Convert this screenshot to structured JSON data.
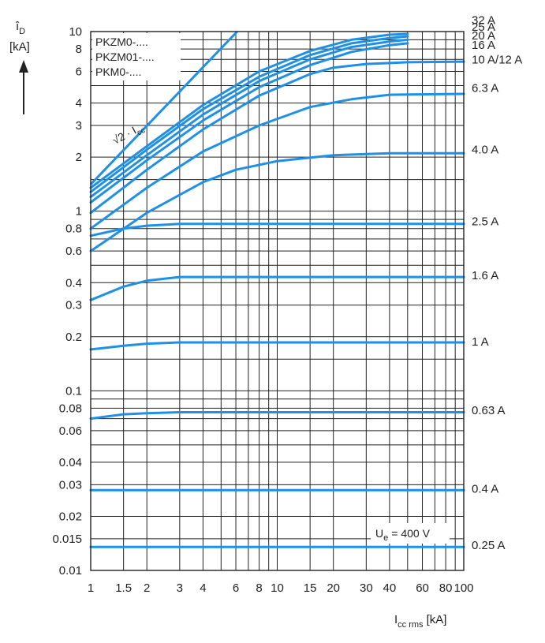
{
  "chart_data": {
    "type": "line",
    "xscale": "log",
    "yscale": "log",
    "xlim": [
      1,
      100
    ],
    "ylim": [
      0.01,
      10
    ],
    "grid": true,
    "series_color": "#1e90e8",
    "ylabel_main": "î",
    "ylabel_sub": "D",
    "yunit": "[kA]",
    "xlabel_main": "I",
    "xlabel_sub": "cc rms",
    "xunit": "[kA]",
    "legend_lines": [
      "PKZM0-....",
      "PKZM01-....",
      "PKM0-...."
    ],
    "ue_main": "U",
    "ue_sub": "e",
    "ue_value": "= 400 V",
    "sqrt_label": "√2 · I",
    "sqrt_sub": "cc",
    "x_ticks": [
      {
        "v": 1,
        "label": "1"
      },
      {
        "v": 1.5,
        "label": "1.5"
      },
      {
        "v": 2,
        "label": "2"
      },
      {
        "v": 3,
        "label": "3"
      },
      {
        "v": 4,
        "label": "4"
      },
      {
        "v": 6,
        "label": "6"
      },
      {
        "v": 8,
        "label": "8"
      },
      {
        "v": 10,
        "label": "10"
      },
      {
        "v": 15,
        "label": "15"
      },
      {
        "v": 20,
        "label": "20"
      },
      {
        "v": 30,
        "label": "30"
      },
      {
        "v": 40,
        "label": "40"
      },
      {
        "v": 60,
        "label": "60"
      },
      {
        "v": 80,
        "label": "80"
      },
      {
        "v": 100,
        "label": "100"
      }
    ],
    "y_ticks": [
      {
        "v": 10,
        "label": "10"
      },
      {
        "v": 8,
        "label": "8"
      },
      {
        "v": 6,
        "label": "6"
      },
      {
        "v": 4,
        "label": "4"
      },
      {
        "v": 3,
        "label": "3"
      },
      {
        "v": 2,
        "label": "2"
      },
      {
        "v": 1,
        "label": "1"
      },
      {
        "v": 0.8,
        "label": "0.8"
      },
      {
        "v": 0.6,
        "label": "0.6"
      },
      {
        "v": 0.4,
        "label": "0.4"
      },
      {
        "v": 0.3,
        "label": "0.3"
      },
      {
        "v": 0.2,
        "label": "0.2"
      },
      {
        "v": 0.1,
        "label": "0.1"
      },
      {
        "v": 0.08,
        "label": "0.08"
      },
      {
        "v": 0.06,
        "label": "0.06"
      },
      {
        "v": 0.04,
        "label": "0.04"
      },
      {
        "v": 0.03,
        "label": "0.03"
      },
      {
        "v": 0.02,
        "label": "0.02"
      },
      {
        "v": 0.015,
        "label": "0.015"
      },
      {
        "v": 0.01,
        "label": "0.01"
      }
    ],
    "x_grid": [
      1,
      1.5,
      2,
      3,
      4,
      5,
      6,
      7,
      8,
      9,
      10,
      15,
      20,
      30,
      40,
      50,
      60,
      70,
      80,
      90,
      100
    ],
    "y_grid": [
      0.01,
      0.015,
      0.02,
      0.03,
      0.04,
      0.05,
      0.06,
      0.07,
      0.08,
      0.09,
      0.1,
      0.15,
      0.2,
      0.3,
      0.4,
      0.5,
      0.6,
      0.7,
      0.8,
      0.9,
      1,
      1.5,
      2,
      3,
      4,
      5,
      6,
      7,
      8,
      9,
      10
    ],
    "reference_line": {
      "name": "√2 · Icc",
      "points": [
        [
          1,
          1.41
        ],
        [
          6.1,
          10
        ]
      ]
    },
    "series": [
      {
        "name": "32 A",
        "end_label": "32 A",
        "points": [
          [
            1,
            1.35
          ],
          [
            2,
            2.3
          ],
          [
            4,
            3.9
          ],
          [
            8,
            6.0
          ],
          [
            15,
            7.8
          ],
          [
            25,
            9.0
          ],
          [
            40,
            9.6
          ],
          [
            50,
            9.7
          ]
        ]
      },
      {
        "name": "25 A",
        "end_label": "25 A",
        "points": [
          [
            1,
            1.28
          ],
          [
            2,
            2.2
          ],
          [
            4,
            3.7
          ],
          [
            8,
            5.6
          ],
          [
            15,
            7.4
          ],
          [
            25,
            8.6
          ],
          [
            40,
            9.2
          ],
          [
            50,
            9.4
          ]
        ]
      },
      {
        "name": "20 A",
        "end_label": "20 A",
        "points": [
          [
            1,
            1.2
          ],
          [
            2,
            2.05
          ],
          [
            4,
            3.45
          ],
          [
            8,
            5.3
          ],
          [
            15,
            7.0
          ],
          [
            25,
            8.2
          ],
          [
            40,
            8.8
          ],
          [
            50,
            9.0
          ]
        ]
      },
      {
        "name": "16 A",
        "end_label": "16 A",
        "points": [
          [
            1,
            1.12
          ],
          [
            2,
            1.92
          ],
          [
            4,
            3.2
          ],
          [
            8,
            4.9
          ],
          [
            15,
            6.5
          ],
          [
            25,
            7.7
          ],
          [
            40,
            8.4
          ],
          [
            50,
            8.6
          ]
        ]
      },
      {
        "name": "10 A/12 A",
        "end_label": "10 A/12 A",
        "points": [
          [
            1,
            0.98
          ],
          [
            2,
            1.7
          ],
          [
            4,
            2.85
          ],
          [
            8,
            4.4
          ],
          [
            15,
            5.8
          ],
          [
            20,
            6.3
          ],
          [
            30,
            6.6
          ],
          [
            50,
            6.75
          ],
          [
            100,
            6.8
          ]
        ]
      },
      {
        "name": "6.3 A",
        "end_label": "6.3 A",
        "points": [
          [
            1,
            0.8
          ],
          [
            2,
            1.35
          ],
          [
            4,
            2.15
          ],
          [
            8,
            3.0
          ],
          [
            15,
            3.8
          ],
          [
            25,
            4.2
          ],
          [
            40,
            4.45
          ],
          [
            100,
            4.5
          ]
        ]
      },
      {
        "name": "4.0 A",
        "end_label": "4.0 A",
        "points": [
          [
            1,
            0.6
          ],
          [
            2,
            0.98
          ],
          [
            4,
            1.45
          ],
          [
            6,
            1.7
          ],
          [
            10,
            1.9
          ],
          [
            20,
            2.05
          ],
          [
            40,
            2.1
          ],
          [
            100,
            2.1
          ]
        ]
      },
      {
        "name": "2.5 A",
        "end_label": "2.5 A",
        "points": [
          [
            1,
            0.73
          ],
          [
            1.5,
            0.8
          ],
          [
            2,
            0.83
          ],
          [
            3,
            0.85
          ],
          [
            100,
            0.85
          ]
        ]
      },
      {
        "name": "1.6 A",
        "end_label": "1.6 A",
        "points": [
          [
            1,
            0.32
          ],
          [
            1.5,
            0.38
          ],
          [
            2,
            0.41
          ],
          [
            3,
            0.43
          ],
          [
            100,
            0.43
          ]
        ]
      },
      {
        "name": "1 A",
        "end_label": "1 A",
        "points": [
          [
            1,
            0.17
          ],
          [
            1.5,
            0.178
          ],
          [
            2,
            0.183
          ],
          [
            3,
            0.186
          ],
          [
            100,
            0.186
          ]
        ]
      },
      {
        "name": "0.63 A",
        "end_label": "0.63 A",
        "points": [
          [
            1,
            0.07
          ],
          [
            1.5,
            0.074
          ],
          [
            2,
            0.075
          ],
          [
            3,
            0.076
          ],
          [
            100,
            0.076
          ]
        ]
      },
      {
        "name": "0.4 A",
        "end_label": "0.4 A",
        "points": [
          [
            1,
            0.028
          ],
          [
            100,
            0.028
          ]
        ]
      },
      {
        "name": "0.25 A",
        "end_label": "0.25 A",
        "points": [
          [
            1,
            0.0135
          ],
          [
            100,
            0.0135
          ]
        ]
      }
    ],
    "right_labels": [
      {
        "label": "32 A",
        "y": 11.6
      },
      {
        "label": "25 A",
        "y": 10.6
      },
      {
        "label": "20 A",
        "y": 9.5
      },
      {
        "label": "16 A",
        "y": 8.4
      },
      {
        "label": "10 A/12 A",
        "y": 7.0
      },
      {
        "label": "6.3 A",
        "y": 4.85
      },
      {
        "label": "4.0 A",
        "y": 2.2
      },
      {
        "label": "2.5 A",
        "y": 0.88
      },
      {
        "label": "1.6 A",
        "y": 0.44
      },
      {
        "label": "1 A",
        "y": 0.188
      },
      {
        "label": "0.63 A",
        "y": 0.078
      },
      {
        "label": "0.4 A",
        "y": 0.0285
      },
      {
        "label": "0.25 A",
        "y": 0.0138
      }
    ]
  }
}
